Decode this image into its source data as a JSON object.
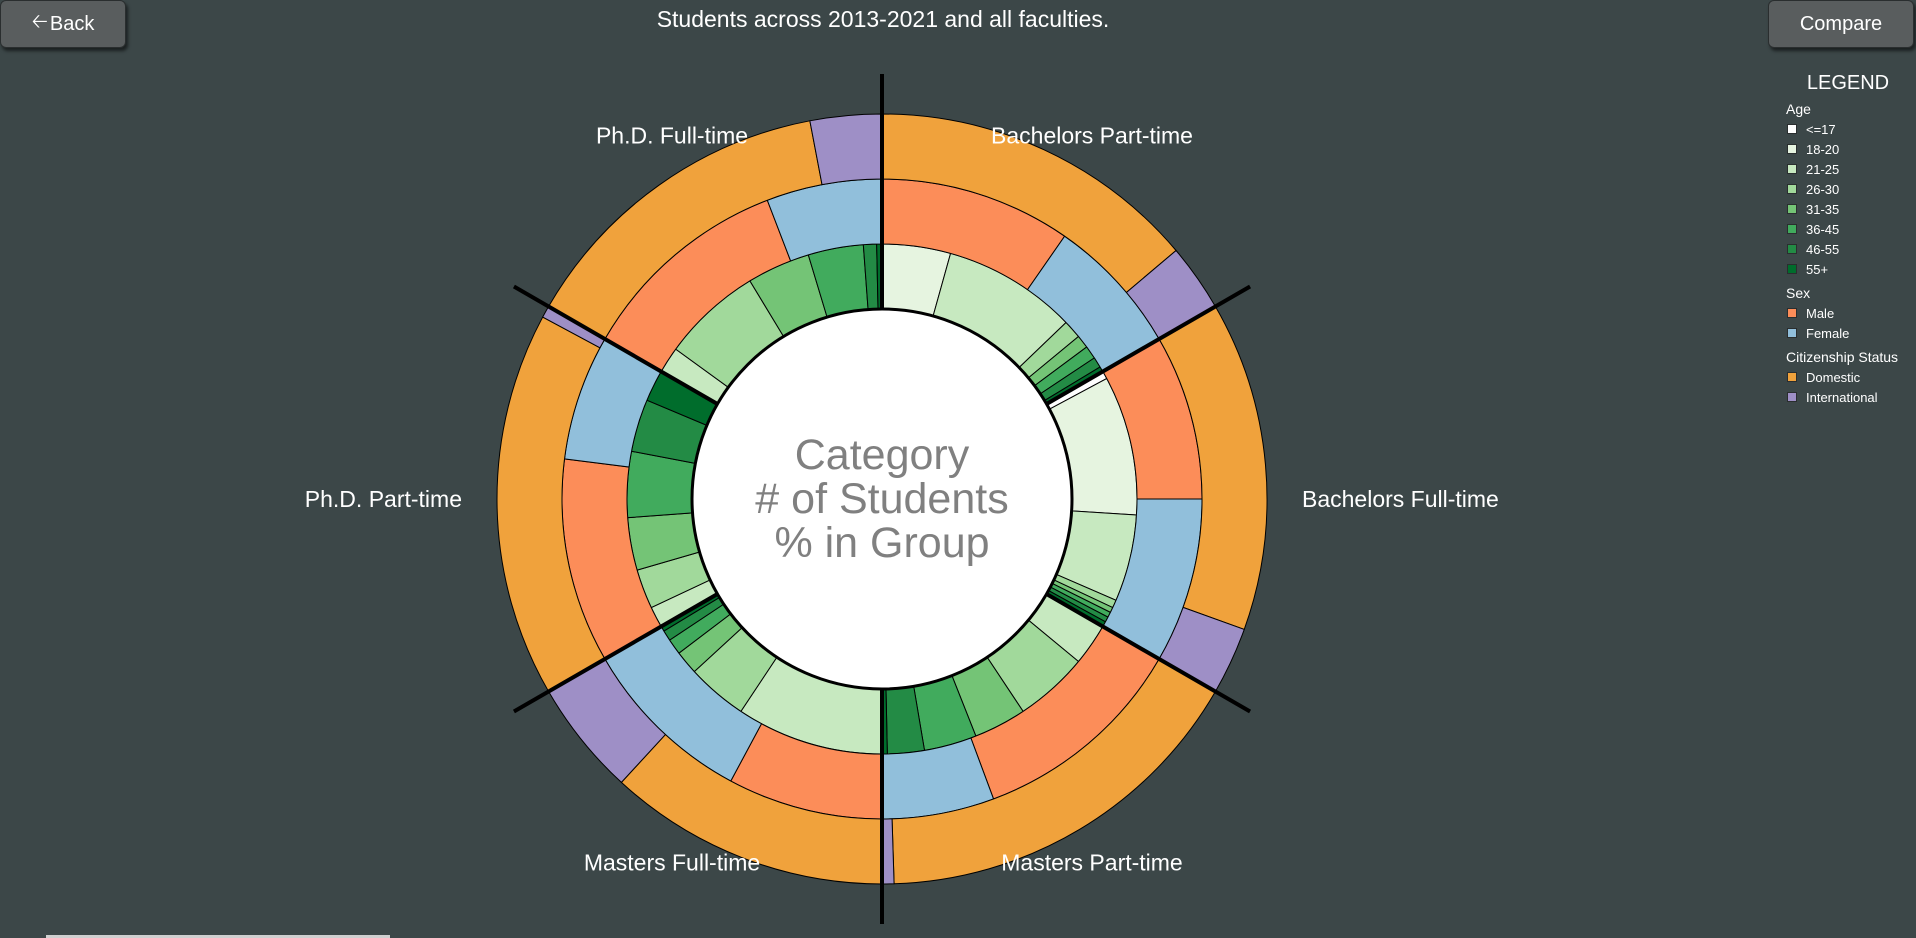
{
  "nav": {
    "back_label": "Back",
    "compare_label": "Compare"
  },
  "header": {
    "title": "Students across 2013-2021 and all faculties."
  },
  "center": {
    "line1": "Category",
    "line2": "# of Students",
    "line3": "% in Group"
  },
  "legend": {
    "title": "LEGEND",
    "groups": [
      {
        "title": "Age",
        "items": [
          {
            "label": "<=17",
            "color": "#ffffff"
          },
          {
            "label": "18-20",
            "color": "#e6f4e0"
          },
          {
            "label": "21-25",
            "color": "#c7e9c0"
          },
          {
            "label": "26-30",
            "color": "#a1d99b"
          },
          {
            "label": "31-35",
            "color": "#74c476"
          },
          {
            "label": "36-45",
            "color": "#41ab5d"
          },
          {
            "label": "46-55",
            "color": "#238b45"
          },
          {
            "label": "55+",
            "color": "#006d2c"
          }
        ]
      },
      {
        "title": "Sex",
        "items": [
          {
            "label": "Male",
            "color": "#fc8d59"
          },
          {
            "label": "Female",
            "color": "#91bfdb"
          }
        ]
      },
      {
        "title": "Citizenship Status",
        "items": [
          {
            "label": "Domestic",
            "color": "#f0a23c"
          },
          {
            "label": "International",
            "color": "#9e8fc6"
          }
        ]
      }
    ]
  },
  "chart_data": {
    "type": "sunburst",
    "title": "Students across 2013-2021 and all faculties.",
    "rings": [
      "Age",
      "Sex",
      "Citizenship Status"
    ],
    "groups": [
      {
        "name": "Bachelors Part-time",
        "citizenship": [
          {
            "category": "Domestic",
            "share": 0.83
          },
          {
            "category": "International",
            "share": 0.17
          }
        ],
        "sex": [
          {
            "category": "Male",
            "share": 0.58
          },
          {
            "category": "Female",
            "share": 0.42
          }
        ],
        "age": [
          {
            "category": "18-20",
            "share": 0.26
          },
          {
            "category": "21-25",
            "share": 0.51
          },
          {
            "category": "26-30",
            "share": 0.07
          },
          {
            "category": "31-35",
            "share": 0.05
          },
          {
            "category": "36-45",
            "share": 0.05
          },
          {
            "category": "46-55",
            "share": 0.04
          },
          {
            "category": "55+",
            "share": 0.02
          }
        ]
      },
      {
        "name": "Bachelors Full-time",
        "citizenship": [
          {
            "category": "Domestic",
            "share": 0.83
          },
          {
            "category": "International",
            "share": 0.17
          }
        ],
        "sex": [
          {
            "category": "Male",
            "share": 0.5
          },
          {
            "category": "Female",
            "share": 0.5
          }
        ],
        "age": [
          {
            "category": "<=17",
            "share": 0.03
          },
          {
            "category": "18-20",
            "share": 0.53
          },
          {
            "category": "21-25",
            "share": 0.33
          },
          {
            "category": "26-30",
            "share": 0.03
          },
          {
            "category": "31-35",
            "share": 0.02
          },
          {
            "category": "36-45",
            "share": 0.02
          },
          {
            "category": "46-55",
            "share": 0.02
          },
          {
            "category": "55+",
            "share": 0.02
          }
        ]
      },
      {
        "name": "Masters Part-time",
        "citizenship": [
          {
            "category": "Domestic",
            "share": 0.97
          },
          {
            "category": "International",
            "share": 0.03
          }
        ],
        "sex": [
          {
            "category": "Male",
            "share": 0.66
          },
          {
            "category": "Female",
            "share": 0.34
          }
        ],
        "age": [
          {
            "category": "21-25",
            "share": 0.16
          },
          {
            "category": "26-30",
            "share": 0.28
          },
          {
            "category": "31-35",
            "share": 0.2
          },
          {
            "category": "36-45",
            "share": 0.2
          },
          {
            "category": "46-55",
            "share": 0.14
          },
          {
            "category": "55+",
            "share": 0.02
          }
        ]
      },
      {
        "name": "Masters Full-time",
        "citizenship": [
          {
            "category": "Domestic",
            "share": 0.71
          },
          {
            "category": "International",
            "share": 0.29
          }
        ],
        "sex": [
          {
            "category": "Male",
            "share": 0.47
          },
          {
            "category": "Female",
            "share": 0.53
          }
        ],
        "age": [
          {
            "category": "21-25",
            "share": 0.56
          },
          {
            "category": "26-30",
            "share": 0.23
          },
          {
            "category": "31-35",
            "share": 0.09
          },
          {
            "category": "36-45",
            "share": 0.06
          },
          {
            "category": "46-55",
            "share": 0.04
          },
          {
            "category": "55+",
            "share": 0.02
          }
        ]
      },
      {
        "name": "Ph.D. Part-time",
        "citizenship": [
          {
            "category": "Domestic",
            "share": 0.97
          },
          {
            "category": "International",
            "share": 0.03
          }
        ],
        "sex": [
          {
            "category": "Male",
            "share": 0.62
          },
          {
            "category": "Female",
            "share": 0.38
          }
        ],
        "age": [
          {
            "category": "21-25",
            "share": 0.08
          },
          {
            "category": "26-30",
            "share": 0.15
          },
          {
            "category": "31-35",
            "share": 0.2
          },
          {
            "category": "36-45",
            "share": 0.25
          },
          {
            "category": "46-55",
            "share": 0.2
          },
          {
            "category": "55+",
            "share": 0.12
          }
        ]
      },
      {
        "name": "Ph.D. Full-time",
        "citizenship": [
          {
            "category": "Domestic",
            "share": 0.82
          },
          {
            "category": "International",
            "share": 0.18
          }
        ],
        "sex": [
          {
            "category": "Male",
            "share": 0.65
          },
          {
            "category": "Female",
            "share": 0.35
          }
        ],
        "age": [
          {
            "category": "21-25",
            "share": 0.1
          },
          {
            "category": "26-30",
            "share": 0.38
          },
          {
            "category": "31-35",
            "share": 0.24
          },
          {
            "category": "36-45",
            "share": 0.21
          },
          {
            "category": "46-55",
            "share": 0.05
          },
          {
            "category": "55+",
            "share": 0.02
          }
        ]
      }
    ]
  }
}
